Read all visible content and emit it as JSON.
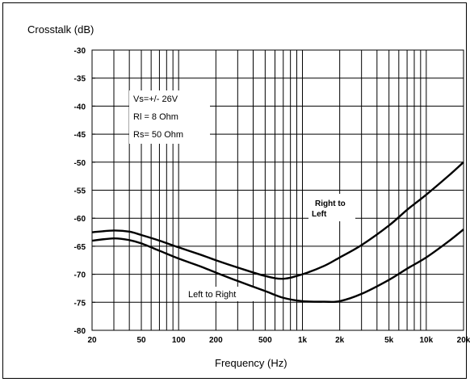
{
  "chart_data": {
    "type": "line",
    "title": "",
    "ylabel": "Crosstalk (dB)",
    "xlabel": "Frequency (Hz)",
    "xscale": "log",
    "xlim": [
      20,
      20000
    ],
    "ylim": [
      -80,
      -30
    ],
    "grid": true,
    "x_ticks": [
      {
        "value": 20,
        "label": "20"
      },
      {
        "value": 50,
        "label": "50"
      },
      {
        "value": 100,
        "label": "100"
      },
      {
        "value": 200,
        "label": "200"
      },
      {
        "value": 500,
        "label": "500"
      },
      {
        "value": 1000,
        "label": "1k"
      },
      {
        "value": 2000,
        "label": "2k"
      },
      {
        "value": 5000,
        "label": "5k"
      },
      {
        "value": 10000,
        "label": "10k"
      },
      {
        "value": 20000,
        "label": "20k"
      }
    ],
    "y_ticks": [
      {
        "value": -30,
        "label": "-30"
      },
      {
        "value": -35,
        "label": "-35"
      },
      {
        "value": -40,
        "label": "-40"
      },
      {
        "value": -45,
        "label": "-45"
      },
      {
        "value": -50,
        "label": "-50"
      },
      {
        "value": -55,
        "label": "-55"
      },
      {
        "value": -60,
        "label": "-60"
      },
      {
        "value": -65,
        "label": "-65"
      },
      {
        "value": -70,
        "label": "-70"
      },
      {
        "value": -75,
        "label": "-75"
      },
      {
        "value": -80,
        "label": "-80"
      }
    ],
    "series": [
      {
        "name": "Right to Left",
        "x": [
          20,
          30,
          40,
          50,
          70,
          100,
          150,
          200,
          300,
          500,
          700,
          1000,
          1500,
          2000,
          3000,
          5000,
          7000,
          10000,
          15000,
          20000
        ],
        "y": [
          -62.5,
          -62.2,
          -62.4,
          -63.0,
          -64.0,
          -65.2,
          -66.5,
          -67.5,
          -68.8,
          -70.3,
          -70.8,
          -70.0,
          -68.5,
          -67.0,
          -64.8,
          -61.3,
          -58.5,
          -55.8,
          -52.5,
          -50.0
        ]
      },
      {
        "name": "Left to Right",
        "x": [
          20,
          30,
          40,
          50,
          70,
          100,
          150,
          200,
          300,
          500,
          700,
          1000,
          1500,
          2000,
          3000,
          5000,
          7000,
          10000,
          15000,
          20000
        ],
        "y": [
          -64.0,
          -63.6,
          -63.9,
          -64.5,
          -65.8,
          -67.2,
          -68.6,
          -69.7,
          -71.2,
          -73.0,
          -74.2,
          -74.8,
          -74.9,
          -74.8,
          -73.5,
          -71.0,
          -69.0,
          -67.0,
          -64.2,
          -62.0
        ]
      }
    ],
    "annotations": [
      {
        "text": "Vs=+/- 26V"
      },
      {
        "text": "Rl = 8 Ohm"
      },
      {
        "text": "Rs= 50 Ohm"
      },
      {
        "text": "Right to"
      },
      {
        "text": "Left"
      },
      {
        "text": "Left to Right"
      }
    ]
  }
}
